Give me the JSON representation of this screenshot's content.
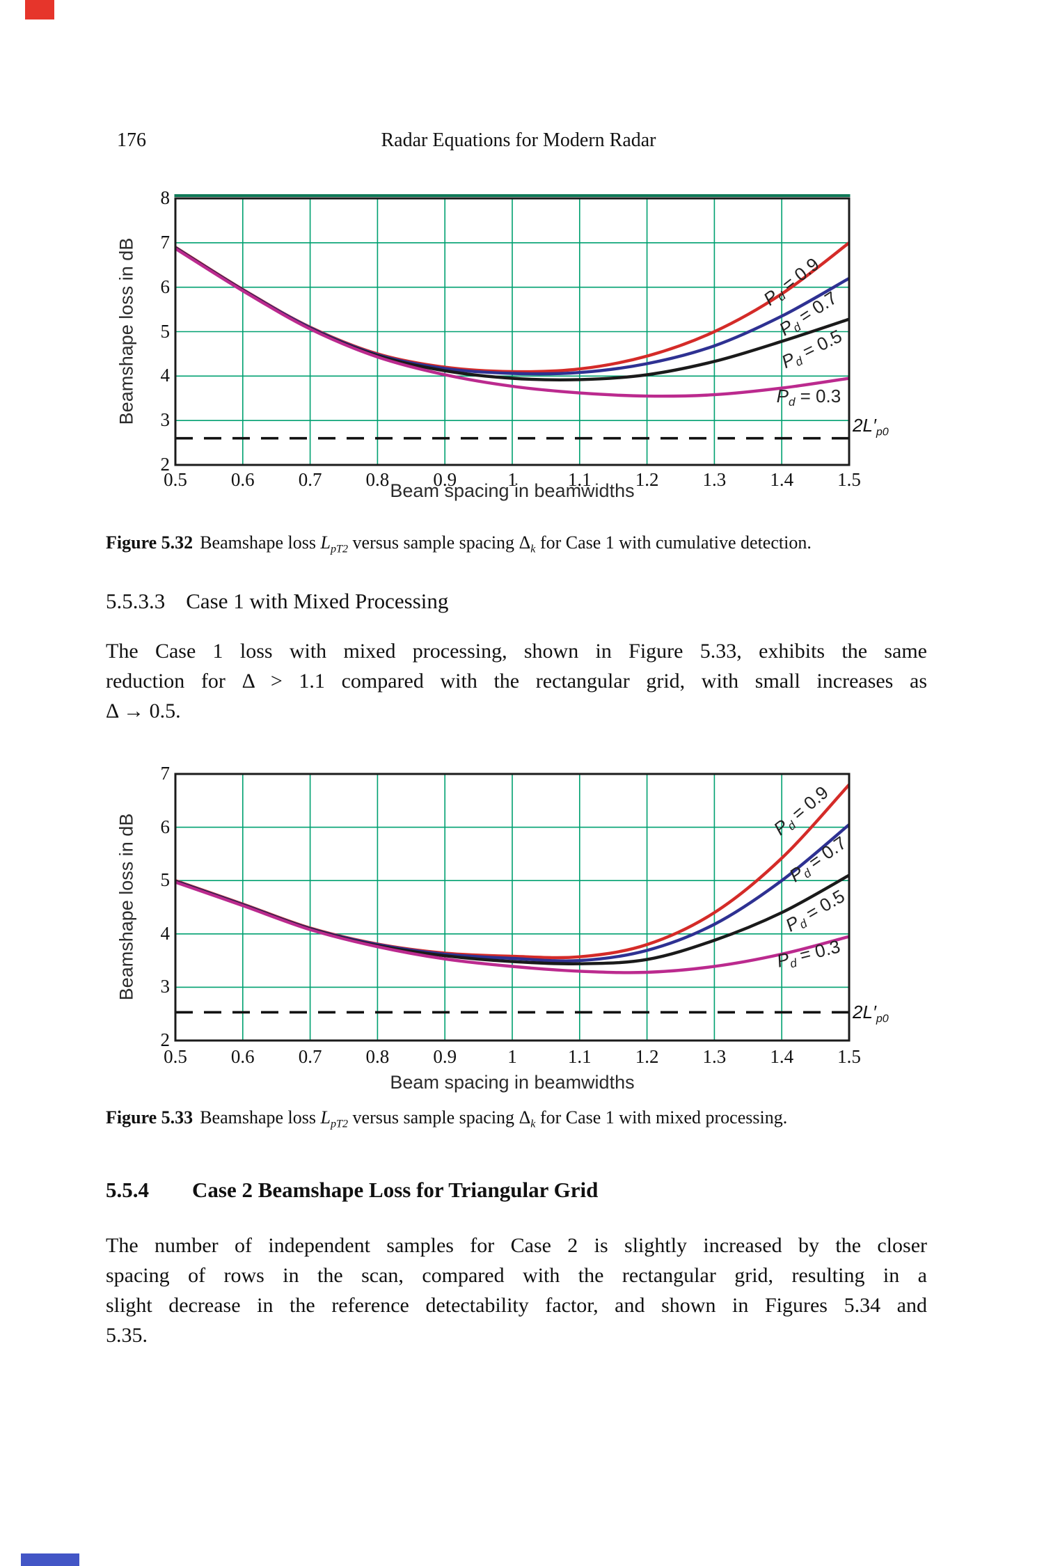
{
  "page": {
    "page_number": "176",
    "running_header": "Radar Equations for Modern Radar"
  },
  "colors": {
    "grid_green": "#00a070",
    "frame_black": "#1b1b1b",
    "frame_top_green": "#0f7a58",
    "curve_red": "#d42b28",
    "curve_blue": "#2e3192",
    "curve_black": "#1a1a1a",
    "curve_magenta": "#bb2a8e",
    "dashed_black": "#111111",
    "edge_mark_top": "#e6352b",
    "edge_mark_bottom": "#4356c6"
  },
  "sections": {
    "s5533": {
      "number": "5.5.3.3",
      "title": "Case 1 with Mixed Processing"
    },
    "s554": {
      "number": "5.5.4",
      "title": "Case 2 Beamshape Loss for Triangular Grid"
    }
  },
  "paragraphs": {
    "p1_lines": [
      "The Case 1 loss with mixed processing, shown in Figure 5.33, exhibits the same",
      "reduction for Δ > 1.1 compared with the rectangular grid, with small increases as",
      "Δ → 0.5."
    ],
    "p2_lines": [
      "The number of independent samples for Case 2 is slightly increased by the closer",
      "spacing of rows in the scan, compared with the rectangular grid, resulting in a",
      "slight decrease in the reference detectability factor, and shown in Figures 5.34 and",
      "5.35."
    ]
  },
  "captions": {
    "fig532_parts": [
      {
        "t": "Figure 5.32",
        "s": "b"
      },
      {
        "t": "Beamshape loss ",
        "s": "n"
      },
      {
        "t": "L",
        "s": "i"
      },
      {
        "t": "pT2",
        "s": "subi"
      },
      {
        "t": " versus sample spacing ",
        "s": "n"
      },
      {
        "t": "Δ",
        "s": "n"
      },
      {
        "t": "k",
        "s": "subi"
      },
      {
        "t": " for Case 1 with cumulative detection.",
        "s": "n"
      }
    ],
    "fig533_parts": [
      {
        "t": "Figure 5.33",
        "s": "b"
      },
      {
        "t": "Beamshape loss ",
        "s": "n"
      },
      {
        "t": "L",
        "s": "i"
      },
      {
        "t": "pT2",
        "s": "subi"
      },
      {
        "t": " versus sample spacing ",
        "s": "n"
      },
      {
        "t": "Δ",
        "s": "n"
      },
      {
        "t": "k",
        "s": "subi"
      },
      {
        "t": " for Case 1 with mixed processing.",
        "s": "n"
      }
    ]
  },
  "chart_data": [
    {
      "type": "line",
      "title": "",
      "xlabel": "Beam spacing in beamwidths",
      "ylabel": "Beamshape loss in dB",
      "xlim": [
        0.5,
        1.5
      ],
      "ylim": [
        2,
        8
      ],
      "grid": true,
      "x_tick_values": [
        0.5,
        0.6,
        0.7,
        0.8,
        0.9,
        1.0,
        1.1,
        1.2,
        1.3,
        1.4,
        1.5
      ],
      "x_tick_labels": [
        "0.5",
        "0.6",
        "0.7",
        "0.8",
        "0.9",
        "1",
        "1.1",
        "1.2",
        "1.3",
        "1.4",
        "1.5"
      ],
      "y_tick_values": [
        8,
        7,
        6,
        5,
        4,
        3,
        2
      ],
      "y_tick_labels": [
        "8",
        "7",
        "6",
        "5",
        "4",
        "3",
        "2"
      ],
      "x": [
        0.5,
        0.6,
        0.7,
        0.8,
        0.9,
        1.0,
        1.1,
        1.2,
        1.3,
        1.4,
        1.5
      ],
      "series": [
        {
          "name": "Pd = 0.9",
          "color": "#d42b28",
          "values": [
            6.9,
            5.95,
            5.1,
            4.5,
            4.2,
            4.1,
            4.16,
            4.45,
            5.0,
            5.85,
            7.0
          ],
          "label": {
            "main": "P",
            "sub": "d",
            "rest": " = 0.9"
          },
          "label_pos": {
            "x": 1.415,
            "y": 6.1,
            "angle": -38
          }
        },
        {
          "name": "Pd = 0.7",
          "color": "#2e3192",
          "values": [
            6.89,
            5.94,
            5.09,
            4.48,
            4.17,
            4.06,
            4.08,
            4.28,
            4.68,
            5.35,
            6.2
          ],
          "label": {
            "main": "P",
            "sub": "d",
            "rest": " = 0.7"
          },
          "label_pos": {
            "x": 1.44,
            "y": 5.38,
            "angle": -33
          }
        },
        {
          "name": "Pd = 0.5",
          "color": "#1a1a1a",
          "values": [
            6.88,
            5.93,
            5.07,
            4.46,
            4.12,
            3.95,
            3.92,
            4.03,
            4.33,
            4.78,
            5.28
          ],
          "label": {
            "main": "P",
            "sub": "d",
            "rest": " = 0.5"
          },
          "label_pos": {
            "x": 1.445,
            "y": 4.58,
            "angle": -26
          }
        },
        {
          "name": "Pd = 0.3",
          "color": "#bb2a8e",
          "values": [
            6.87,
            5.92,
            5.06,
            4.43,
            4.03,
            3.77,
            3.62,
            3.55,
            3.58,
            3.73,
            3.95
          ],
          "label": {
            "main": "P",
            "sub": "d",
            "rest": " = 0.3"
          },
          "label_pos": {
            "x": 1.44,
            "y": 3.52,
            "angle": 0
          }
        }
      ],
      "dashed_line": {
        "value": 2.6,
        "label": "2L′p0"
      },
      "dash_label_parts": [
        {
          "t": "2",
          "s": "i"
        },
        {
          "t": "L",
          "s": "i"
        },
        {
          "t": "′",
          "s": "i"
        },
        {
          "t": "p0",
          "s": "subi"
        }
      ]
    },
    {
      "type": "line",
      "title": "",
      "xlabel": "Beam spacing in beamwidths",
      "ylabel": "Beamshape loss in dB",
      "xlim": [
        0.5,
        1.5
      ],
      "ylim": [
        2,
        7
      ],
      "grid": true,
      "x_tick_values": [
        0.5,
        0.6,
        0.7,
        0.8,
        0.9,
        1.0,
        1.1,
        1.2,
        1.3,
        1.4,
        1.5
      ],
      "x_tick_labels": [
        "0.5",
        "0.6",
        "0.7",
        "0.8",
        "0.9",
        "1",
        "1.1",
        "1.2",
        "1.3",
        "1.4",
        "1.5"
      ],
      "y_tick_values": [
        7,
        6,
        5,
        4,
        3,
        2
      ],
      "y_tick_labels": [
        "7",
        "6",
        "5",
        "4",
        "3",
        "2"
      ],
      "x": [
        0.5,
        0.6,
        0.7,
        0.8,
        0.9,
        1.0,
        1.1,
        1.2,
        1.3,
        1.4,
        1.5
      ],
      "series": [
        {
          "name": "Pd = 0.9",
          "color": "#d42b28",
          "values": [
            5.0,
            4.56,
            4.11,
            3.81,
            3.64,
            3.58,
            3.57,
            3.8,
            4.4,
            5.42,
            6.8
          ],
          "label": {
            "main": "P",
            "sub": "d",
            "rest": " = 0.9"
          },
          "label_pos": {
            "x": 1.43,
            "y": 6.3,
            "angle": -40
          }
        },
        {
          "name": "Pd = 0.7",
          "color": "#2e3192",
          "values": [
            4.99,
            4.55,
            4.1,
            3.8,
            3.62,
            3.54,
            3.5,
            3.69,
            4.18,
            5.0,
            6.05
          ],
          "label": {
            "main": "P",
            "sub": "d",
            "rest": " = 0.7"
          },
          "label_pos": {
            "x": 1.455,
            "y": 5.38,
            "angle": -35
          }
        },
        {
          "name": "Pd = 0.5",
          "color": "#1a1a1a",
          "values": [
            4.98,
            4.54,
            4.09,
            3.78,
            3.59,
            3.48,
            3.44,
            3.52,
            3.88,
            4.4,
            5.1
          ],
          "label": {
            "main": "P",
            "sub": "d",
            "rest": " = 0.5"
          },
          "label_pos": {
            "x": 1.45,
            "y": 4.42,
            "angle": -30
          }
        },
        {
          "name": "Pd = 0.3",
          "color": "#bb2a8e",
          "values": [
            4.97,
            4.53,
            4.08,
            3.76,
            3.53,
            3.39,
            3.3,
            3.28,
            3.39,
            3.62,
            3.95
          ],
          "label": {
            "main": "P",
            "sub": "d",
            "rest": " = 0.3"
          },
          "label_pos": {
            "x": 1.44,
            "y": 3.6,
            "angle": -14
          }
        }
      ],
      "dashed_line": {
        "value": 2.53,
        "label": "2L′p0"
      },
      "dash_label_parts": [
        {
          "t": "2",
          "s": "i"
        },
        {
          "t": "L",
          "s": "i"
        },
        {
          "t": "′",
          "s": "i"
        },
        {
          "t": "p0",
          "s": "subi"
        }
      ]
    }
  ]
}
